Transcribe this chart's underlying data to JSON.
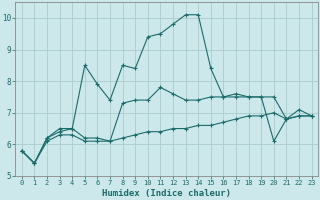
{
  "xlabel": "Humidex (Indice chaleur)",
  "background_color": "#cce8ea",
  "grid_color": "#aacccc",
  "line_color": "#1a6b6b",
  "x_values": [
    0,
    1,
    2,
    3,
    4,
    5,
    6,
    7,
    8,
    9,
    10,
    11,
    12,
    13,
    14,
    15,
    16,
    17,
    18,
    19,
    20,
    21,
    22,
    23
  ],
  "line_volatile": [
    5.8,
    5.4,
    6.2,
    6.5,
    6.5,
    8.5,
    7.9,
    7.4,
    8.5,
    8.4,
    9.4,
    9.5,
    9.8,
    10.1,
    10.1,
    8.4,
    7.5,
    7.6,
    7.5,
    7.5,
    6.1,
    6.8,
    7.1,
    6.9
  ],
  "line_mid": [
    5.8,
    5.4,
    6.2,
    6.4,
    6.5,
    6.2,
    6.2,
    6.1,
    7.3,
    7.4,
    7.4,
    7.8,
    7.6,
    7.4,
    7.4,
    7.5,
    7.5,
    7.5,
    7.5,
    7.5,
    7.5,
    6.8,
    6.9,
    6.9
  ],
  "line_flat": [
    5.8,
    5.4,
    6.1,
    6.3,
    6.3,
    6.1,
    6.1,
    6.1,
    6.2,
    6.3,
    6.4,
    6.4,
    6.5,
    6.5,
    6.6,
    6.6,
    6.7,
    6.8,
    6.9,
    6.9,
    7.0,
    6.8,
    6.9,
    6.9
  ],
  "ylim": [
    5,
    10.5
  ],
  "yticks": [
    5,
    6,
    7,
    8,
    9,
    10
  ],
  "xticks": [
    0,
    1,
    2,
    3,
    4,
    5,
    6,
    7,
    8,
    9,
    10,
    11,
    12,
    13,
    14,
    15,
    16,
    17,
    18,
    19,
    20,
    21,
    22,
    23
  ]
}
